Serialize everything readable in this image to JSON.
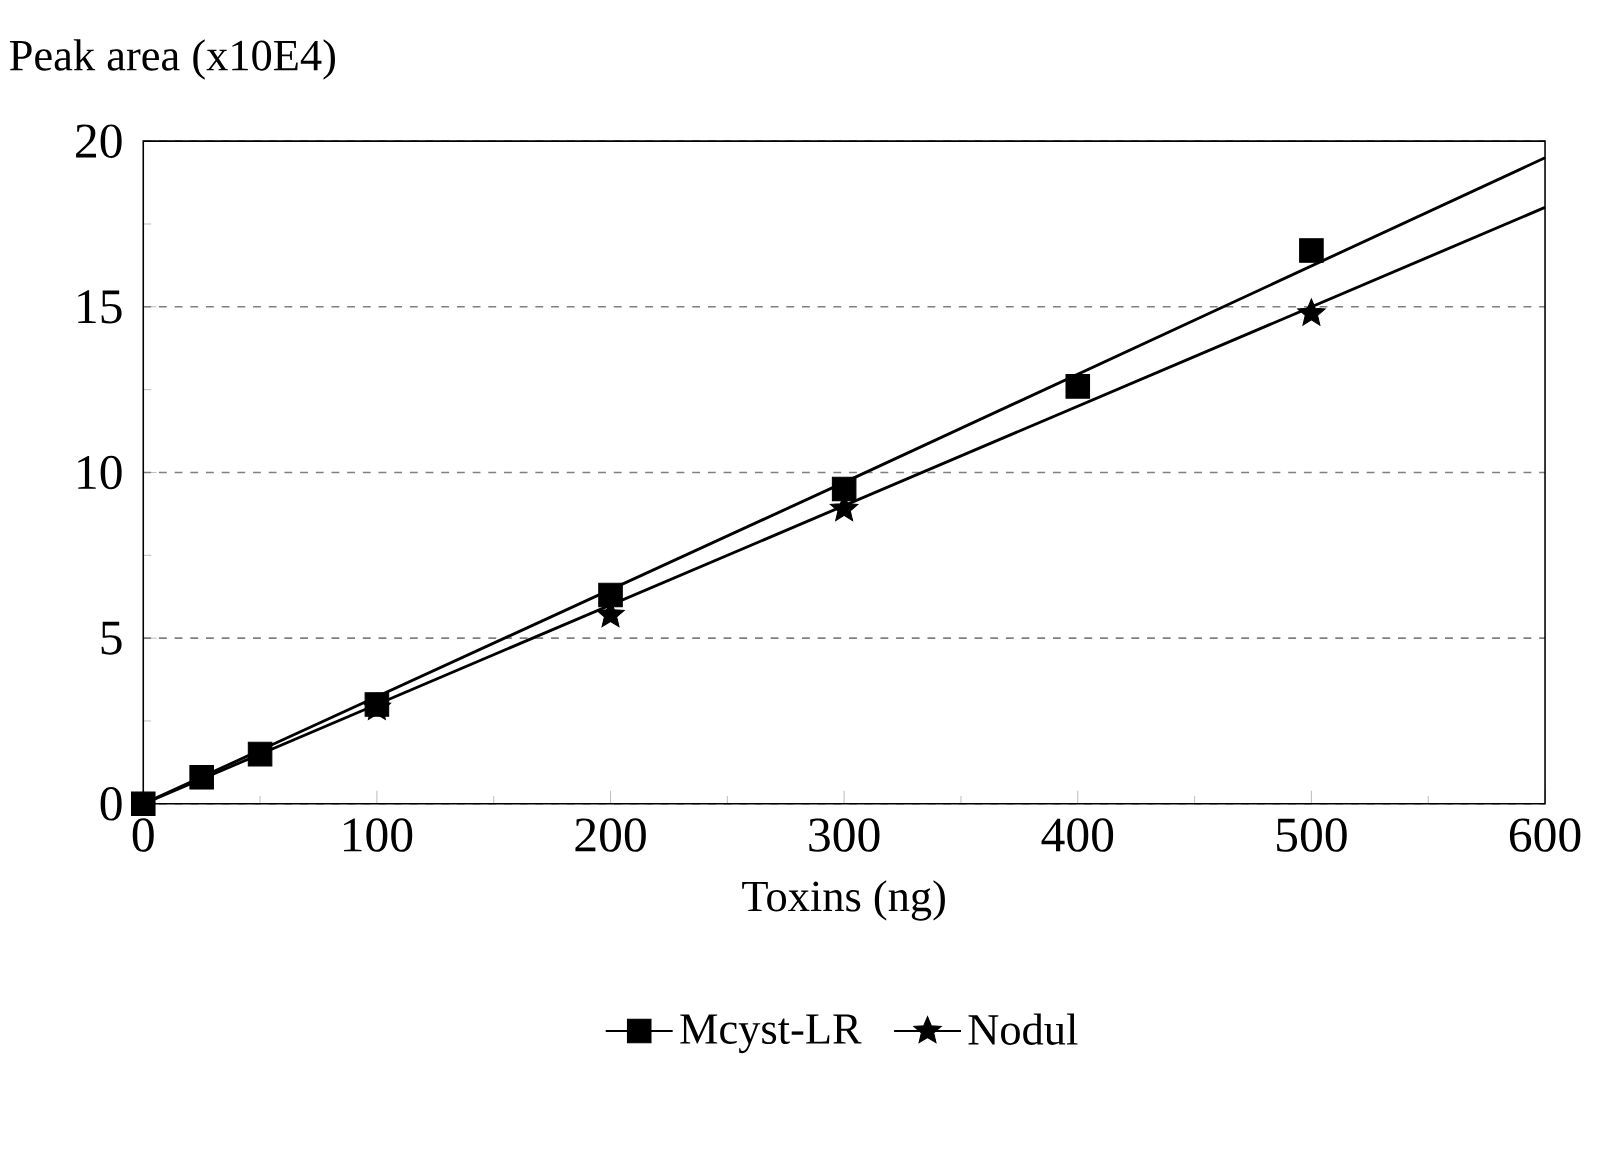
{
  "chart_data": {
    "type": "scatter",
    "xlabel": "Toxins (ng)",
    "ylabel": "Peak area (x10E4)",
    "x": [
      0,
      25,
      50,
      100,
      200,
      300,
      400,
      500
    ],
    "series": [
      {
        "name": "Mcyst-LR",
        "color": "#000000",
        "marker": "square",
        "values": [
          0,
          0.8,
          1.5,
          3.0,
          6.3,
          9.5,
          12.6,
          16.7
        ]
      },
      {
        "name": "Nodul",
        "color": "#000000",
        "marker": "star",
        "values": [
          null,
          null,
          null,
          2.9,
          5.7,
          8.9,
          null,
          14.8
        ]
      },
      {
        "type": "line",
        "color": "#000000",
        "x": [
          0,
          300,
          600
        ],
        "values": [
          0,
          9.7,
          19.5
        ]
      },
      {
        "type": "line",
        "color": "#000000",
        "x": [
          0,
          600
        ],
        "values": [
          0,
          18.0
        ]
      }
    ],
    "xlim": [
      0,
      600
    ],
    "xticks": [
      0,
      100,
      200,
      300,
      400,
      500,
      600
    ],
    "ylim": [
      0,
      20
    ],
    "yticks": [
      0,
      5,
      10,
      15,
      20
    ],
    "grid": "y",
    "legend": "bottom"
  }
}
